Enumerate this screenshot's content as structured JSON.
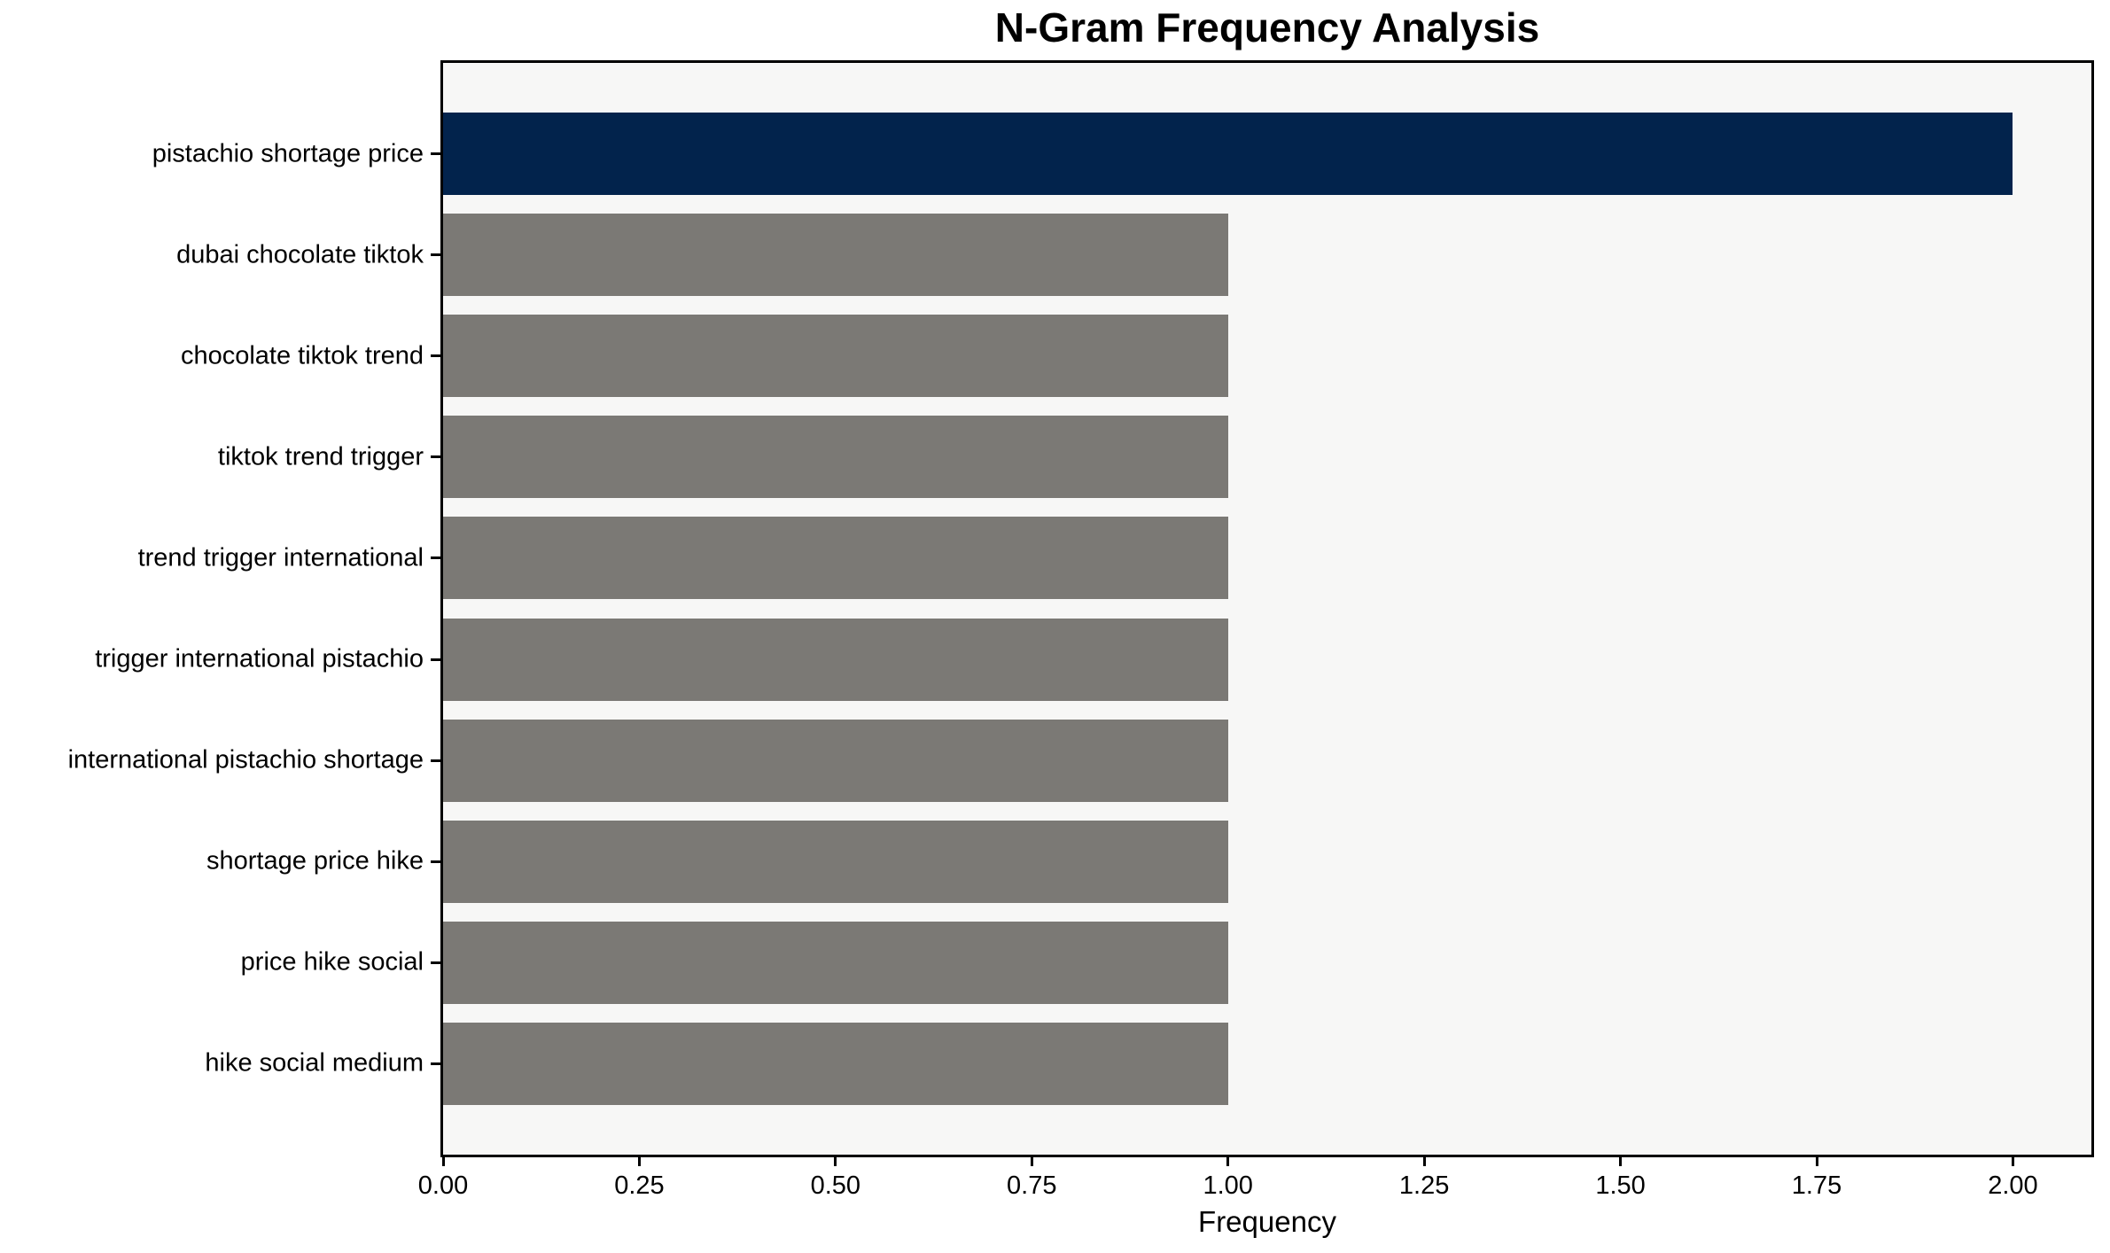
{
  "chart_data": {
    "type": "bar",
    "orientation": "horizontal",
    "title": "N-Gram Frequency Analysis",
    "xlabel": "Frequency",
    "ylabel": "",
    "categories": [
      "pistachio shortage price",
      "dubai chocolate tiktok",
      "chocolate tiktok trend",
      "tiktok trend trigger",
      "trend trigger international",
      "trigger international pistachio",
      "international pistachio shortage",
      "shortage price hike",
      "price hike social",
      "hike social medium"
    ],
    "values": [
      2,
      1,
      1,
      1,
      1,
      1,
      1,
      1,
      1,
      1
    ],
    "highlight_index": 0,
    "xlim": [
      0,
      2.1
    ],
    "xticks": [
      {
        "value": 0.0,
        "label": "0.00"
      },
      {
        "value": 0.25,
        "label": "0.25"
      },
      {
        "value": 0.5,
        "label": "0.50"
      },
      {
        "value": 0.75,
        "label": "0.75"
      },
      {
        "value": 1.0,
        "label": "1.00"
      },
      {
        "value": 1.25,
        "label": "1.25"
      },
      {
        "value": 1.5,
        "label": "1.50"
      },
      {
        "value": 1.75,
        "label": "1.75"
      },
      {
        "value": 2.0,
        "label": "2.00"
      }
    ],
    "grid": false,
    "legend": null,
    "colors": {
      "highlight": "#02234c",
      "bar": "#7b7975",
      "plot_background": "#f7f7f6",
      "figure_background": "#ffffff",
      "axis": "#000000",
      "text": "#000000"
    }
  }
}
